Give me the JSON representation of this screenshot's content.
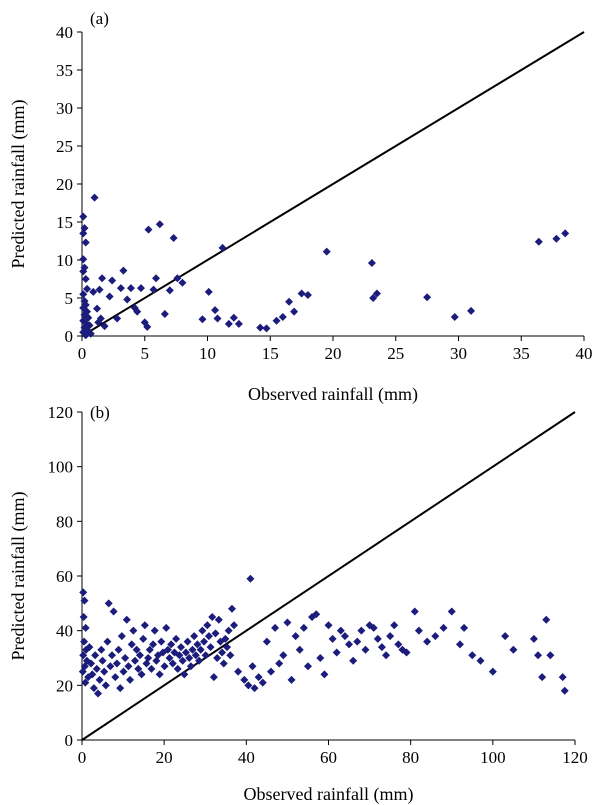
{
  "chart_data": [
    {
      "type": "scatter",
      "panel_label": "(a)",
      "xlabel": "Observed rainfall (mm)",
      "ylabel": "Predicted rainfall (mm)",
      "xlim": [
        0,
        40
      ],
      "ylim": [
        0,
        40
      ],
      "xticks": [
        0,
        5,
        10,
        15,
        20,
        25,
        30,
        35,
        40
      ],
      "yticks": [
        0,
        5,
        10,
        15,
        20,
        25,
        30,
        35,
        40
      ],
      "grid": false,
      "marker": "diamond",
      "marker_color": "#1c1c7c",
      "reference_line": {
        "from": [
          0,
          0
        ],
        "to": [
          40,
          40
        ]
      },
      "points": [
        [
          0.1,
          15.7
        ],
        [
          0.2,
          14.2
        ],
        [
          0.1,
          13.5
        ],
        [
          0.3,
          12.3
        ],
        [
          0.1,
          10.1
        ],
        [
          0.2,
          9.0
        ],
        [
          0.1,
          8.5
        ],
        [
          0.3,
          7.5
        ],
        [
          0.4,
          6.2
        ],
        [
          0.1,
          5.5
        ],
        [
          0.2,
          4.6
        ],
        [
          0.3,
          4.1
        ],
        [
          0.1,
          3.7
        ],
        [
          0.4,
          3.2
        ],
        [
          0.2,
          2.8
        ],
        [
          0.5,
          2.4
        ],
        [
          0.1,
          2.0
        ],
        [
          0.3,
          1.7
        ],
        [
          0.6,
          1.4
        ],
        [
          0.2,
          1.1
        ],
        [
          0.4,
          0.8
        ],
        [
          0.1,
          0.5
        ],
        [
          0.7,
          0.3
        ],
        [
          0.3,
          0.1
        ],
        [
          1.0,
          18.2
        ],
        [
          0.9,
          5.8
        ],
        [
          1.4,
          6.1
        ],
        [
          1.6,
          7.6
        ],
        [
          1.2,
          3.6
        ],
        [
          1.5,
          2.3
        ],
        [
          1.3,
          1.8
        ],
        [
          1.8,
          1.3
        ],
        [
          2.2,
          5.2
        ],
        [
          2.4,
          7.3
        ],
        [
          2.8,
          2.3
        ],
        [
          3.1,
          6.3
        ],
        [
          3.3,
          8.6
        ],
        [
          3.6,
          4.8
        ],
        [
          3.9,
          6.3
        ],
        [
          4.2,
          3.7
        ],
        [
          4.4,
          3.2
        ],
        [
          4.7,
          6.3
        ],
        [
          5.0,
          1.8
        ],
        [
          5.2,
          1.2
        ],
        [
          5.3,
          14.0
        ],
        [
          5.7,
          6.1
        ],
        [
          5.9,
          7.6
        ],
        [
          6.2,
          14.7
        ],
        [
          6.6,
          2.9
        ],
        [
          7.0,
          6.0
        ],
        [
          7.3,
          12.9
        ],
        [
          7.6,
          7.6
        ],
        [
          8.0,
          7.0
        ],
        [
          9.6,
          2.2
        ],
        [
          10.1,
          5.8
        ],
        [
          10.6,
          3.4
        ],
        [
          10.8,
          2.3
        ],
        [
          11.2,
          11.6
        ],
        [
          11.7,
          1.6
        ],
        [
          12.1,
          2.4
        ],
        [
          12.5,
          1.6
        ],
        [
          14.2,
          1.1
        ],
        [
          14.7,
          1.0
        ],
        [
          15.5,
          2.0
        ],
        [
          16.0,
          2.5
        ],
        [
          16.5,
          4.5
        ],
        [
          16.9,
          3.2
        ],
        [
          17.5,
          5.6
        ],
        [
          18.0,
          5.4
        ],
        [
          19.5,
          11.1
        ],
        [
          23.1,
          9.6
        ],
        [
          23.2,
          5.0
        ],
        [
          23.5,
          5.6
        ],
        [
          27.5,
          5.1
        ],
        [
          29.7,
          2.5
        ],
        [
          31.0,
          3.3
        ],
        [
          36.4,
          12.4
        ],
        [
          37.8,
          12.8
        ],
        [
          38.5,
          13.5
        ]
      ]
    },
    {
      "type": "scatter",
      "panel_label": "(b)",
      "xlabel": "Observed rainfall (mm)",
      "ylabel": "Predicted rainfall (mm)",
      "xlim": [
        0,
        120
      ],
      "ylim": [
        0,
        120
      ],
      "xticks": [
        0,
        20,
        40,
        60,
        80,
        100,
        120
      ],
      "yticks": [
        0,
        20,
        40,
        60,
        80,
        100,
        120
      ],
      "grid": false,
      "marker": "diamond",
      "marker_color": "#1c1c7c",
      "reference_line": {
        "from": [
          0,
          0
        ],
        "to": [
          120,
          120
        ]
      },
      "points": [
        [
          0.3,
          54.0
        ],
        [
          0.6,
          51.0
        ],
        [
          0.4,
          45.0
        ],
        [
          0.9,
          41.0
        ],
        [
          0.5,
          36.0
        ],
        [
          1.0,
          33.0
        ],
        [
          0.3,
          31.0
        ],
        [
          1.2,
          29.0
        ],
        [
          0.7,
          27.0
        ],
        [
          0.2,
          25.0
        ],
        [
          1.5,
          23.0
        ],
        [
          0.8,
          21.0
        ],
        [
          1.8,
          34.0
        ],
        [
          2.2,
          28.0
        ],
        [
          2.5,
          24.0
        ],
        [
          2.9,
          19.0
        ],
        [
          3.2,
          31.0
        ],
        [
          3.6,
          26.0
        ],
        [
          3.9,
          17.0
        ],
        [
          4.3,
          22.0
        ],
        [
          4.7,
          33.0
        ],
        [
          5.0,
          29.0
        ],
        [
          5.4,
          25.0
        ],
        [
          5.8,
          20.0
        ],
        [
          6.2,
          36.0
        ],
        [
          6.5,
          50.0
        ],
        [
          6.9,
          27.0
        ],
        [
          7.3,
          31.0
        ],
        [
          7.7,
          47.0
        ],
        [
          8.1,
          23.0
        ],
        [
          8.5,
          28.0
        ],
        [
          8.9,
          33.0
        ],
        [
          9.3,
          19.0
        ],
        [
          9.7,
          38.0
        ],
        [
          10.1,
          25.0
        ],
        [
          10.5,
          30.0
        ],
        [
          10.9,
          44.0
        ],
        [
          11.3,
          27.0
        ],
        [
          11.7,
          22.0
        ],
        [
          12.1,
          35.0
        ],
        [
          12.5,
          40.0
        ],
        [
          12.9,
          29.0
        ],
        [
          13.3,
          33.0
        ],
        [
          13.7,
          26.0
        ],
        [
          14.1,
          31.0
        ],
        [
          14.5,
          24.0
        ],
        [
          14.9,
          37.0
        ],
        [
          15.3,
          42.0
        ],
        [
          15.7,
          28.0
        ],
        [
          16.1,
          30.0
        ],
        [
          16.5,
          33.0
        ],
        [
          16.9,
          26.0
        ],
        [
          17.3,
          35.0
        ],
        [
          17.7,
          40.0
        ],
        [
          18.1,
          29.0
        ],
        [
          18.5,
          31.0
        ],
        [
          18.9,
          24.0
        ],
        [
          19.3,
          36.0
        ],
        [
          19.7,
          32.0
        ],
        [
          20.1,
          27.0
        ],
        [
          20.5,
          41.0
        ],
        [
          20.9,
          33.0
        ],
        [
          21.3,
          30.0
        ],
        [
          21.7,
          35.0
        ],
        [
          22.1,
          28.0
        ],
        [
          22.5,
          32.0
        ],
        [
          22.9,
          37.0
        ],
        [
          23.3,
          26.0
        ],
        [
          23.7,
          31.0
        ],
        [
          24.1,
          34.0
        ],
        [
          24.5,
          29.0
        ],
        [
          24.9,
          24.0
        ],
        [
          25.3,
          32.0
        ],
        [
          25.7,
          36.0
        ],
        [
          26.1,
          30.0
        ],
        [
          26.5,
          27.0
        ],
        [
          26.9,
          33.0
        ],
        [
          27.3,
          38.0
        ],
        [
          27.7,
          31.0
        ],
        [
          28.1,
          35.0
        ],
        [
          28.5,
          29.0
        ],
        [
          28.9,
          33.0
        ],
        [
          29.3,
          40.0
        ],
        [
          29.7,
          36.0
        ],
        [
          30.1,
          31.0
        ],
        [
          30.5,
          42.0
        ],
        [
          30.9,
          38.0
        ],
        [
          31.3,
          34.0
        ],
        [
          31.7,
          45.0
        ],
        [
          32.1,
          23.0
        ],
        [
          32.5,
          39.0
        ],
        [
          32.9,
          30.0
        ],
        [
          33.3,
          44.0
        ],
        [
          33.7,
          36.0
        ],
        [
          34.1,
          32.0
        ],
        [
          34.5,
          28.0
        ],
        [
          34.9,
          37.0
        ],
        [
          35.3,
          34.0
        ],
        [
          35.7,
          40.0
        ],
        [
          36.1,
          31.0
        ],
        [
          36.5,
          48.0
        ],
        [
          37.0,
          42.0
        ],
        [
          38.0,
          25.0
        ],
        [
          39.5,
          22.0
        ],
        [
          40.5,
          20.0
        ],
        [
          41.0,
          59.0
        ],
        [
          41.5,
          27.0
        ],
        [
          42.0,
          19.0
        ],
        [
          43.0,
          23.0
        ],
        [
          44.0,
          21.0
        ],
        [
          45.0,
          36.0
        ],
        [
          46.0,
          25.0
        ],
        [
          47.0,
          41.0
        ],
        [
          48.0,
          28.0
        ],
        [
          49.0,
          31.0
        ],
        [
          50.0,
          43.0
        ],
        [
          51.0,
          22.0
        ],
        [
          52.0,
          38.0
        ],
        [
          53.0,
          33.0
        ],
        [
          54.0,
          41.0
        ],
        [
          55.0,
          27.0
        ],
        [
          56.0,
          45.0
        ],
        [
          57.0,
          46.0
        ],
        [
          58.0,
          30.0
        ],
        [
          59.0,
          24.0
        ],
        [
          60.0,
          42.0
        ],
        [
          61.0,
          37.0
        ],
        [
          62.0,
          32.0
        ],
        [
          63.0,
          40.0
        ],
        [
          64.0,
          38.0
        ],
        [
          65.0,
          35.0
        ],
        [
          66.0,
          29.0
        ],
        [
          67.0,
          36.0
        ],
        [
          68.0,
          40.0
        ],
        [
          69.0,
          33.0
        ],
        [
          70.0,
          42.0
        ],
        [
          71.0,
          41.0
        ],
        [
          72.0,
          37.0
        ],
        [
          73.0,
          34.0
        ],
        [
          74.0,
          31.0
        ],
        [
          75.0,
          38.0
        ],
        [
          76.0,
          42.0
        ],
        [
          77.0,
          35.0
        ],
        [
          78.0,
          33.0
        ],
        [
          79.0,
          32.0
        ],
        [
          81.0,
          47.0
        ],
        [
          82.0,
          40.0
        ],
        [
          84.0,
          36.0
        ],
        [
          86.0,
          38.0
        ],
        [
          88.0,
          41.0
        ],
        [
          90.0,
          47.0
        ],
        [
          92.0,
          35.0
        ],
        [
          93.0,
          41.0
        ],
        [
          95.0,
          31.0
        ],
        [
          97.0,
          29.0
        ],
        [
          100.0,
          25.0
        ],
        [
          103.0,
          38.0
        ],
        [
          105.0,
          33.0
        ],
        [
          110.0,
          37.0
        ],
        [
          111.0,
          31.0
        ],
        [
          112.0,
          23.0
        ],
        [
          113.0,
          44.0
        ],
        [
          114.0,
          31.0
        ],
        [
          117.0,
          23.0
        ],
        [
          117.5,
          18.0
        ]
      ]
    }
  ]
}
